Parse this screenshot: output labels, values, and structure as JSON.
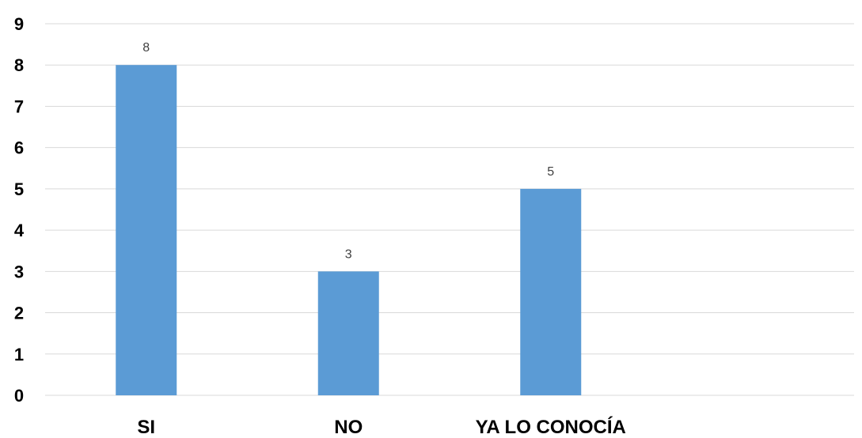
{
  "chart_data": {
    "type": "bar",
    "categories": [
      "SI",
      "NO",
      "YA LO CONOCÍA",
      ""
    ],
    "values": [
      8,
      3,
      5,
      null
    ],
    "title": "",
    "xlabel": "",
    "ylabel": "",
    "ylim": [
      0,
      9
    ],
    "yticks": [
      "0",
      "1",
      "2",
      "3",
      "4",
      "5",
      "6",
      "7",
      "8",
      "9"
    ],
    "data_labels": [
      "8",
      "3",
      "5",
      ""
    ],
    "grid": true,
    "legend": "none",
    "bar_color": "#5b9bd5"
  }
}
